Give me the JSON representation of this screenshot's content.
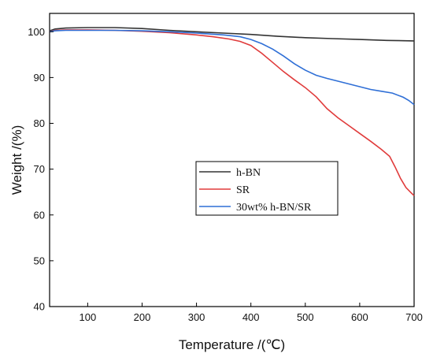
{
  "chart_data": {
    "type": "line",
    "xlabel": "Temperature /(℃)",
    "ylabel": "Weight /(%)",
    "xlim": [
      30,
      700
    ],
    "ylim": [
      40,
      104
    ],
    "xticks": [
      100,
      200,
      300,
      400,
      500,
      600,
      700
    ],
    "yticks": [
      40,
      50,
      60,
      70,
      80,
      90,
      100
    ],
    "grid": false,
    "legend_position": "center",
    "series": [
      {
        "name": "h-BN",
        "color": "#333333",
        "x": [
          30,
          40,
          60,
          100,
          150,
          200,
          250,
          300,
          350,
          400,
          450,
          500,
          550,
          600,
          650,
          700
        ],
        "y": [
          100.2,
          100.6,
          100.8,
          100.9,
          100.9,
          100.7,
          100.3,
          100.0,
          99.7,
          99.4,
          99.0,
          98.7,
          98.5,
          98.3,
          98.1,
          98.0
        ]
      },
      {
        "name": "SR",
        "color": "#e03b3b",
        "x": [
          30,
          40,
          60,
          100,
          150,
          200,
          250,
          300,
          330,
          360,
          380,
          400,
          420,
          440,
          460,
          480,
          500,
          520,
          540,
          560,
          580,
          600,
          620,
          640,
          655,
          665,
          675,
          685,
          695,
          700
        ],
        "y": [
          100.0,
          100.3,
          100.4,
          100.4,
          100.3,
          100.1,
          99.8,
          99.3,
          98.9,
          98.4,
          97.9,
          97.0,
          95.3,
          93.3,
          91.3,
          89.5,
          87.8,
          85.8,
          83.2,
          81.2,
          79.5,
          77.8,
          76.1,
          74.3,
          72.8,
          70.5,
          68.0,
          66.0,
          64.8,
          64.2
        ]
      },
      {
        "name": "30wt% h-BN/SR",
        "color": "#2f6fd6",
        "x": [
          30,
          40,
          60,
          100,
          150,
          200,
          250,
          300,
          350,
          380,
          400,
          420,
          440,
          460,
          480,
          500,
          520,
          540,
          560,
          580,
          600,
          620,
          640,
          660,
          680,
          690,
          700
        ],
        "y": [
          100.0,
          100.2,
          100.3,
          100.3,
          100.3,
          100.2,
          100.0,
          99.7,
          99.3,
          98.9,
          98.3,
          97.4,
          96.2,
          94.7,
          93.0,
          91.6,
          90.5,
          89.8,
          89.2,
          88.6,
          88.0,
          87.4,
          87.0,
          86.6,
          85.7,
          85.0,
          84.1
        ]
      }
    ]
  }
}
